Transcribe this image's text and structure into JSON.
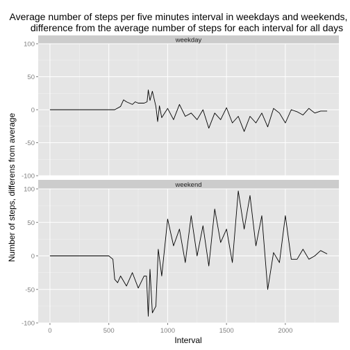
{
  "chart_data": {
    "type": "line",
    "title_lines": [
      "Average number of steps per five minutes interval in weekdays and weekends,",
      "difference from the average number of steps for each interval for all days"
    ],
    "xlabel": "Interval",
    "ylabel": "Number of steps, differens from average",
    "xlim": [
      -100,
      2455
    ],
    "ylim": [
      -100,
      100
    ],
    "x_ticks": [
      0,
      500,
      1000,
      1500,
      2000
    ],
    "y_ticks": [
      -100,
      -50,
      0,
      50,
      100
    ],
    "grid": true,
    "colors": {
      "panel_bg": "#e5e5e5",
      "strip_bg": "#cccccc",
      "grid_major": "#ffffff",
      "grid_minor": "#f2f2f2",
      "line": "#000000"
    },
    "panels": [
      {
        "strip": "weekday",
        "series": {
          "x": [
            0,
            50,
            100,
            150,
            200,
            250,
            300,
            350,
            400,
            450,
            500,
            550,
            600,
            625,
            650,
            700,
            725,
            750,
            800,
            825,
            835,
            850,
            870,
            900,
            915,
            930,
            950,
            1000,
            1050,
            1100,
            1150,
            1200,
            1250,
            1300,
            1350,
            1400,
            1450,
            1500,
            1550,
            1600,
            1650,
            1700,
            1750,
            1800,
            1850,
            1900,
            1950,
            2000,
            2050,
            2100,
            2150,
            2200,
            2250,
            2300,
            2355
          ],
          "y": [
            0,
            0,
            0,
            0,
            0,
            0,
            0,
            0,
            0,
            0,
            0,
            0,
            5,
            15,
            12,
            8,
            12,
            10,
            10,
            12,
            30,
            14,
            28,
            5,
            -18,
            6,
            -12,
            2,
            -15,
            8,
            -10,
            -5,
            -15,
            0,
            -28,
            -5,
            -15,
            3,
            -20,
            -10,
            -33,
            -10,
            -20,
            -5,
            -26,
            2,
            -5,
            -20,
            0,
            -3,
            -8,
            2,
            -5,
            -2,
            -2
          ]
        }
      },
      {
        "strip": "weekend",
        "series": {
          "x": [
            0,
            50,
            100,
            150,
            200,
            250,
            300,
            350,
            400,
            450,
            500,
            535,
            550,
            575,
            600,
            650,
            700,
            750,
            800,
            820,
            835,
            850,
            870,
            900,
            920,
            950,
            1000,
            1050,
            1100,
            1150,
            1200,
            1250,
            1300,
            1350,
            1400,
            1450,
            1500,
            1550,
            1600,
            1650,
            1700,
            1750,
            1800,
            1850,
            1900,
            1950,
            2000,
            2050,
            2100,
            2150,
            2200,
            2250,
            2300,
            2355
          ],
          "y": [
            0,
            0,
            0,
            0,
            0,
            0,
            0,
            0,
            0,
            0,
            0,
            -5,
            -35,
            -40,
            -30,
            -45,
            -25,
            -48,
            -30,
            -30,
            -90,
            -20,
            -85,
            -75,
            10,
            -30,
            55,
            15,
            40,
            -10,
            60,
            0,
            45,
            -15,
            70,
            20,
            40,
            -10,
            97,
            40,
            90,
            15,
            60,
            -50,
            5,
            -10,
            60,
            -5,
            -5,
            10,
            -5,
            0,
            8,
            3
          ]
        }
      }
    ]
  }
}
